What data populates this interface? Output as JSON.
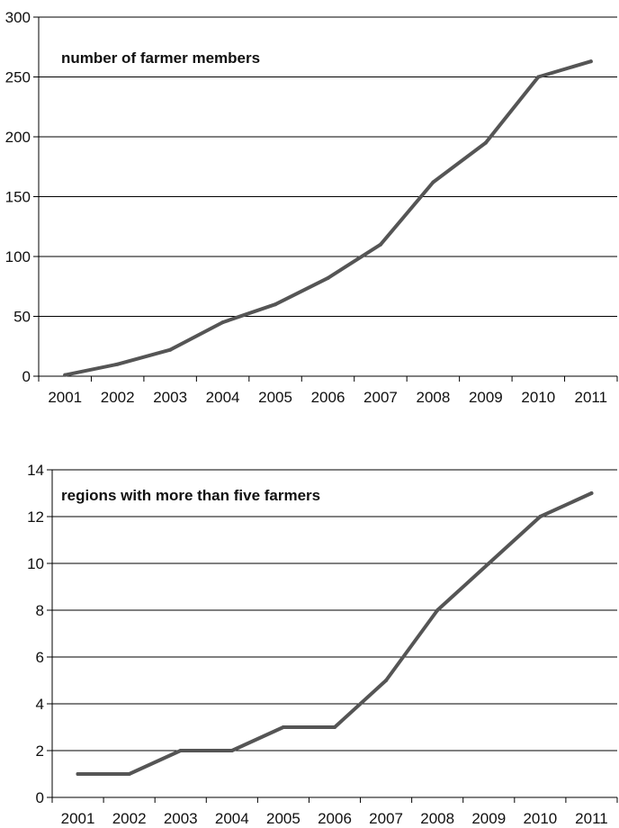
{
  "chart_data": [
    {
      "type": "line",
      "title": "number of farmer members",
      "xlabel": "",
      "ylabel": "",
      "categories": [
        "2001",
        "2002",
        "2003",
        "2004",
        "2005",
        "2006",
        "2007",
        "2008",
        "2009",
        "2010",
        "2011"
      ],
      "series": [
        {
          "values": [
            1,
            10,
            22,
            45,
            60,
            82,
            110,
            162,
            195,
            250,
            263
          ]
        }
      ],
      "ylim": [
        0,
        300
      ],
      "yticks": [
        0,
        50,
        100,
        150,
        200,
        250,
        300
      ],
      "grid": "horizontal",
      "legend": "none",
      "line_color": "#555555"
    },
    {
      "type": "line",
      "title": "regions with more than five farmers",
      "xlabel": "",
      "ylabel": "",
      "categories": [
        "2001",
        "2002",
        "2003",
        "2004",
        "2005",
        "2006",
        "2007",
        "2008",
        "2009",
        "2010",
        "2011"
      ],
      "series": [
        {
          "values": [
            1,
            1,
            2,
            2,
            3,
            3,
            5,
            8,
            10,
            12,
            13
          ]
        }
      ],
      "ylim": [
        0,
        14
      ],
      "yticks": [
        0,
        2,
        4,
        6,
        8,
        10,
        12,
        14
      ],
      "grid": "horizontal",
      "legend": "none",
      "line_color": "#555555"
    }
  ]
}
